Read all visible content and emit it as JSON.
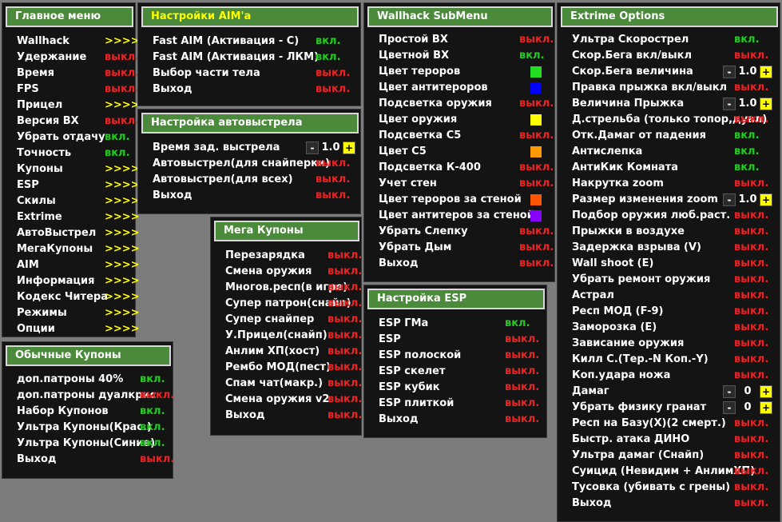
{
  "colors": {
    "on": "#22cc22",
    "off": "#ee2222",
    "arrows": "#ffff00",
    "header": "#4a8a3a"
  },
  "main_menu": {
    "title": "Главное меню",
    "items": [
      {
        "label": "Wallhack",
        "value": ">>>>",
        "state": "arr"
      },
      {
        "label": "Удержание",
        "value": "выкл.",
        "state": "off"
      },
      {
        "label": "Время",
        "value": "выкл.",
        "state": "off"
      },
      {
        "label": "FPS",
        "value": "выкл.",
        "state": "off"
      },
      {
        "label": "Прицел",
        "value": ">>>>",
        "state": "arr"
      },
      {
        "label": "Версия ВХ",
        "value": "выкл.",
        "state": "off"
      },
      {
        "label": "Убрать отдачу",
        "value": "вкл.",
        "state": "on"
      },
      {
        "label": "Точность",
        "value": "вкл.",
        "state": "on"
      },
      {
        "label": "Купоны",
        "value": ">>>>",
        "state": "arr"
      },
      {
        "label": "ESP",
        "value": ">>>>",
        "state": "arr"
      },
      {
        "label": "Скилы",
        "value": ">>>>",
        "state": "arr"
      },
      {
        "label": "Extrime",
        "value": ">>>>",
        "state": "arr"
      },
      {
        "label": "АвтоВыстрел",
        "value": ">>>>",
        "state": "arr"
      },
      {
        "label": "МегаКупоны",
        "value": ">>>>",
        "state": "arr"
      },
      {
        "label": "AIM",
        "value": ">>>>",
        "state": "arr"
      },
      {
        "label": "Информация",
        "value": ">>>>",
        "state": "arr"
      },
      {
        "label": "Кодекс Читера",
        "value": ">>>>",
        "state": "arr"
      },
      {
        "label": "Режимы",
        "value": ">>>>",
        "state": "arr"
      },
      {
        "label": "Опции",
        "value": ">>>>",
        "state": "arr"
      }
    ]
  },
  "aim_settings": {
    "title": "Настройки AIM'а",
    "items": [
      {
        "label": "Fast AIM (Активация - С)",
        "value": "вкл.",
        "state": "on"
      },
      {
        "label": "Fast AIM (Активация - ЛКМ)",
        "value": "вкл.",
        "state": "on"
      },
      {
        "label": "Выбор части тела",
        "value": "выкл.",
        "state": "off"
      },
      {
        "label": "Выход",
        "value": "выкл.",
        "state": "off"
      }
    ]
  },
  "autoshot": {
    "title": "Настройка автовыстрела",
    "items": [
      {
        "label": "Время зад. выстрела",
        "stepper": {
          "minus": "-",
          "value": "1.0",
          "plus": "+"
        }
      },
      {
        "label": "Автовыстрел(для снайперки)",
        "value": "выкл.",
        "state": "off"
      },
      {
        "label": "Автовыстрел(для всех)",
        "value": "выкл.",
        "state": "off"
      },
      {
        "label": "Выход",
        "value": "выкл.",
        "state": "off"
      }
    ]
  },
  "wallhack": {
    "title": "Wallhack SubMenu",
    "items": [
      {
        "label": "Простой ВХ",
        "value": "выкл.",
        "state": "off"
      },
      {
        "label": "Цветной ВХ",
        "value": "вкл.",
        "state": "on"
      },
      {
        "label": "Цвет тероров",
        "swatch": "#22dd22"
      },
      {
        "label": "Цвет антитероров",
        "swatch": "#0000ff"
      },
      {
        "label": "Подсветка оружия",
        "value": "выкл.",
        "state": "off"
      },
      {
        "label": "Цвет оружия",
        "swatch": "#ffff00"
      },
      {
        "label": "Подсветка С5",
        "value": "выкл.",
        "state": "off"
      },
      {
        "label": "Цвет С5",
        "swatch": "#ff9900"
      },
      {
        "label": "Подсветка К-400",
        "value": "выкл.",
        "state": "off"
      },
      {
        "label": "Учет стен",
        "value": "выкл.",
        "state": "off"
      },
      {
        "label": "Цвет тероров за стеной",
        "swatch": "#ff5500"
      },
      {
        "label": "Цвет антитеров за стеной",
        "swatch": "#8800ff"
      },
      {
        "label": "Убрать Слепку",
        "value": "выкл.",
        "state": "off"
      },
      {
        "label": "Убрать Дым",
        "value": "выкл.",
        "state": "off"
      },
      {
        "label": "Выход",
        "value": "выкл.",
        "state": "off"
      }
    ]
  },
  "mega_coupons": {
    "title": "Мега Купоны",
    "items": [
      {
        "label": "Перезарядка",
        "value": "выкл.",
        "state": "off"
      },
      {
        "label": "Смена оружия",
        "value": "выкл.",
        "state": "off"
      },
      {
        "label": "Многов.респ(в игре)",
        "value": "выкл.",
        "state": "off"
      },
      {
        "label": "Супер патрон(снайп)",
        "value": "выкл.",
        "state": "off"
      },
      {
        "label": "Супер снайпер",
        "value": "выкл.",
        "state": "off"
      },
      {
        "label": "У.Прицел(снайп)",
        "value": "выкл.",
        "state": "off"
      },
      {
        "label": "Анлим ХП(хост)",
        "value": "выкл.",
        "state": "off"
      },
      {
        "label": "Рембо МОД(пест)",
        "value": "выкл.",
        "state": "off"
      },
      {
        "label": "Спам чат(макр.)",
        "value": "выкл.",
        "state": "off"
      },
      {
        "label": "Смена оружия v2",
        "value": "выкл.",
        "state": "off"
      },
      {
        "label": "Выход",
        "value": "выкл.",
        "state": "off"
      }
    ]
  },
  "esp_settings": {
    "title": "Настройка ESP",
    "items": [
      {
        "label": "ESP ГМа",
        "value": "вкл.",
        "state": "on"
      },
      {
        "label": "ESP",
        "value": "выкл.",
        "state": "off"
      },
      {
        "label": "ESP полоской",
        "value": "выкл.",
        "state": "off"
      },
      {
        "label": "ESP скелет",
        "value": "выкл.",
        "state": "off"
      },
      {
        "label": "ESP кубик",
        "value": "выкл.",
        "state": "off"
      },
      {
        "label": "ESP плиткой",
        "value": "выкл.",
        "state": "off"
      },
      {
        "label": "Выход",
        "value": "выкл.",
        "state": "off"
      }
    ]
  },
  "regular_coupons": {
    "title": "Обычные Купоны",
    "items": [
      {
        "label": "доп.патроны 40%",
        "value": "вкл.",
        "state": "on"
      },
      {
        "label": "доп.патроны дуалкрис",
        "value": "выкл.",
        "state": "off"
      },
      {
        "label": "Набор Купонов",
        "value": "вкл.",
        "state": "on"
      },
      {
        "label": "Ультра Купоны(Крас.)",
        "value": "вкл.",
        "state": "on"
      },
      {
        "label": "Ультра Купоны(Синие)",
        "value": "вкл.",
        "state": "on"
      },
      {
        "label": "Выход",
        "value": "выкл.",
        "state": "off"
      }
    ]
  },
  "extrime": {
    "title": "Extrime Options",
    "items": [
      {
        "label": "Ультра Скорострел",
        "value": "вкл.",
        "state": "on"
      },
      {
        "label": "Скор.Бега вкл/выкл",
        "value": "выкл.",
        "state": "off"
      },
      {
        "label": "Скор.Бега величина",
        "stepper": {
          "minus": "-",
          "value": "1.0",
          "plus": "+"
        }
      },
      {
        "label": "Правка прыжка вкл/выкл",
        "value": "выкл.",
        "state": "off"
      },
      {
        "label": "Величина Прыжка",
        "stepper": {
          "minus": "-",
          "value": "1.0",
          "plus": "+"
        }
      },
      {
        "label": "Д.стрельба (только топор,дуал)",
        "value": "выкл.",
        "state": "off"
      },
      {
        "label": "Отк.Дамаг от падения",
        "value": "вкл.",
        "state": "on"
      },
      {
        "label": "Антислепка",
        "value": "вкл.",
        "state": "on"
      },
      {
        "label": "АнтиКик Комната",
        "value": "вкл.",
        "state": "on"
      },
      {
        "label": "Накрутка zoom",
        "value": "выкл.",
        "state": "off"
      },
      {
        "label": "Размер изменения zoom",
        "stepper": {
          "minus": "-",
          "value": "1.0",
          "plus": "+"
        }
      },
      {
        "label": "Подбор оружия люб.раст.",
        "value": "выкл.",
        "state": "off"
      },
      {
        "label": "Прыжки в воздухе",
        "value": "выкл.",
        "state": "off"
      },
      {
        "label": "Задержка взрыва (V)",
        "value": "выкл.",
        "state": "off"
      },
      {
        "label": "Wall shoot (E)",
        "value": "выкл.",
        "state": "off"
      },
      {
        "label": "Убрать ремонт оружия",
        "value": "выкл.",
        "state": "off"
      },
      {
        "label": "Астрал",
        "value": "выкл.",
        "state": "off"
      },
      {
        "label": "Респ МОД (F-9)",
        "value": "выкл.",
        "state": "off"
      },
      {
        "label": "Заморозка (E)",
        "value": "выкл.",
        "state": "off"
      },
      {
        "label": "Зависание оружия",
        "value": "выкл.",
        "state": "off"
      },
      {
        "label": "Килл С.(Тер.-N Коп.-Y)",
        "value": "выкл.",
        "state": "off"
      },
      {
        "label": "Коп.удара ножа",
        "value": "выкл.",
        "state": "off"
      },
      {
        "label": "Дамаг",
        "stepper": {
          "minus": "-",
          "value": "0",
          "plus": "+"
        }
      },
      {
        "label": "Убрать физику гранат",
        "stepper": {
          "minus": "-",
          "value": "0",
          "plus": "+"
        }
      },
      {
        "label": "Респ на Базу(X)(2 смерт.)",
        "value": "выкл.",
        "state": "off"
      },
      {
        "label": "Быстр. атака ДИНО",
        "value": "выкл.",
        "state": "off"
      },
      {
        "label": "Ультра дамаг (Снайп)",
        "value": "выкл.",
        "state": "off"
      },
      {
        "label": "Суицид (Невидим + АнлимХП)",
        "value": "выкл.",
        "state": "off"
      },
      {
        "label": "Тусовка (убивать с грены)",
        "value": "выкл.",
        "state": "off"
      },
      {
        "label": "Выход",
        "value": "выкл.",
        "state": "off"
      }
    ]
  }
}
